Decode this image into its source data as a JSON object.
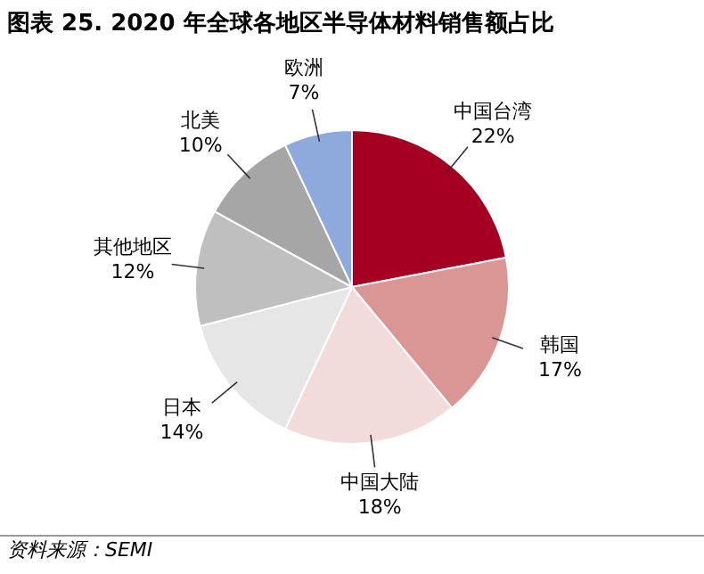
{
  "chart_data": {
    "type": "pie",
    "title": "图表 25. 2020 年全球各地区半导体材料销售额占比",
    "categories": [
      "中国台湾",
      "韩国",
      "中国大陆",
      "日本",
      "其他地区",
      "北美",
      "欧洲"
    ],
    "values": [
      22,
      17,
      18,
      14,
      12,
      10,
      7
    ],
    "value_labels": [
      "22%",
      "17%",
      "18%",
      "14%",
      "12%",
      "10%",
      "7%"
    ],
    "colors": [
      "#a50021",
      "#d99694",
      "#f2dcdb",
      "#e6e6e6",
      "#bfbfbf",
      "#a6a6a6",
      "#8ea9db"
    ],
    "legend": false,
    "annotations": [
      "资料来源：SEMI"
    ]
  }
}
